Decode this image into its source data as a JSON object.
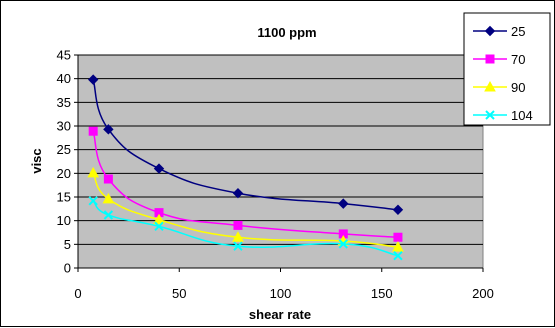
{
  "chart_data": {
    "type": "scatter",
    "title": "1100 ppm",
    "xlabel": "shear rate",
    "ylabel": "visc",
    "xlim": [
      0,
      200
    ],
    "ylim": [
      0,
      45
    ],
    "xticks": [
      0,
      50,
      100,
      150,
      200
    ],
    "yticks": [
      0,
      5,
      10,
      15,
      20,
      25,
      30,
      35,
      40,
      45
    ],
    "grid": "horizontal",
    "plot_background": "#c0c0c0",
    "legend_position": "top-right",
    "lines": "smoothed",
    "series": [
      {
        "name": "25",
        "color": "#000080",
        "marker": "diamond",
        "points": [
          [
            7.5,
            39.8
          ],
          [
            15,
            29.3
          ],
          [
            40,
            21
          ],
          [
            79,
            15.8
          ],
          [
            131,
            13.6
          ],
          [
            158,
            12.3
          ]
        ]
      },
      {
        "name": "70",
        "color": "#ff00ff",
        "marker": "square",
        "points": [
          [
            7.5,
            28.9
          ],
          [
            15,
            18.8
          ],
          [
            40,
            11.7
          ],
          [
            79,
            9
          ],
          [
            131,
            7.2
          ],
          [
            158,
            6.5
          ]
        ]
      },
      {
        "name": "90",
        "color": "#ffff00",
        "marker": "triangle",
        "points": [
          [
            7.5,
            20.1
          ],
          [
            15,
            14.6
          ],
          [
            40,
            10.2
          ],
          [
            79,
            6.5
          ],
          [
            131,
            5.7
          ],
          [
            158,
            4.4
          ]
        ]
      },
      {
        "name": "104",
        "color": "#00ffff",
        "marker": "x",
        "points": [
          [
            7.5,
            14.2
          ],
          [
            15,
            11.2
          ],
          [
            40,
            8.8
          ],
          [
            79,
            4.6
          ],
          [
            131,
            5.1
          ],
          [
            158,
            2.6
          ]
        ]
      }
    ]
  }
}
